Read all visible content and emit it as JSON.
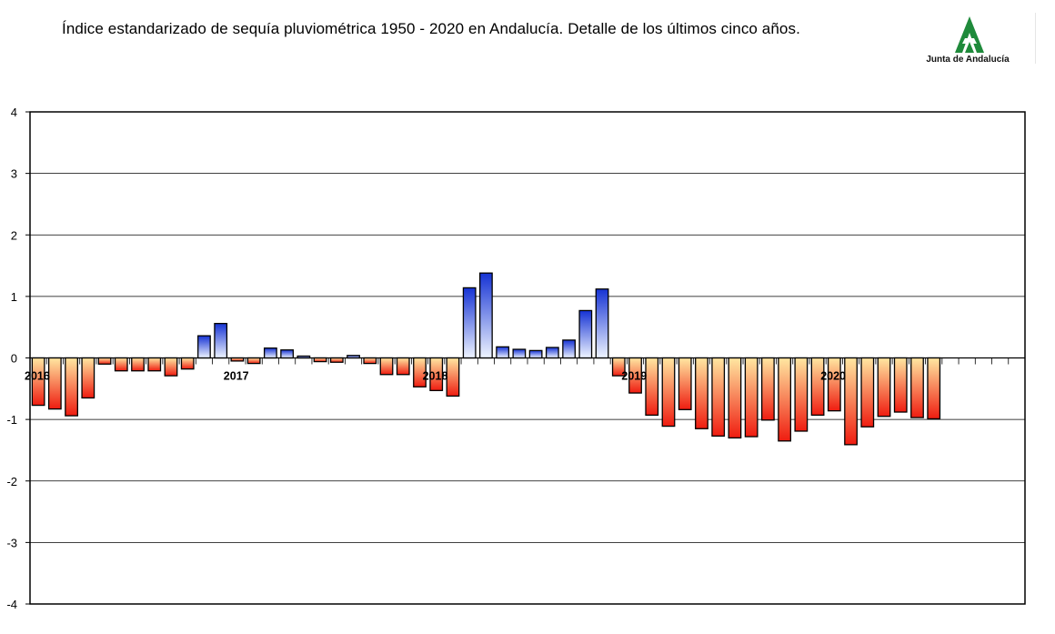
{
  "title": "Índice estandarizado de sequía pluviométrica 1950 - 2020 en Andalucía. Detalle de los últimos cinco años.",
  "logo": {
    "text": "Junta de Andalucía",
    "color": "#1f8a3b",
    "icon": "junta-andalucia-logo"
  },
  "chart_data": {
    "type": "bar",
    "ylim": [
      -4,
      4
    ],
    "yticks": [
      4,
      3,
      2,
      1,
      0,
      -1,
      -2,
      -3,
      -4
    ],
    "grid": true,
    "year_labels": [
      {
        "label": "2016",
        "index": 0
      },
      {
        "label": "2017",
        "index": 12
      },
      {
        "label": "2018",
        "index": 24
      },
      {
        "label": "2019",
        "index": 36
      },
      {
        "label": "2020",
        "index": 48
      }
    ],
    "values": [
      -0.77,
      -0.83,
      -0.94,
      -0.65,
      -0.1,
      -0.21,
      -0.21,
      -0.21,
      -0.29,
      -0.18,
      0.36,
      0.56,
      -0.05,
      -0.09,
      0.16,
      0.13,
      0.03,
      -0.06,
      -0.07,
      0.04,
      -0.09,
      -0.27,
      -0.27,
      -0.47,
      -0.53,
      -0.62,
      1.14,
      1.38,
      0.18,
      0.14,
      0.12,
      0.17,
      0.29,
      0.77,
      1.12,
      -0.29,
      -0.57,
      -0.93,
      -1.11,
      -0.84,
      -1.15,
      -1.27,
      -1.3,
      -1.28,
      -1.01,
      -1.35,
      -1.19,
      -0.93,
      -0.86,
      -1.41,
      -1.12,
      -0.95,
      -0.88,
      -0.97,
      -0.99,
      0,
      0,
      0,
      0,
      0
    ],
    "colors": {
      "positive_top": "#1633d4",
      "positive_bottom": "#eef4ff",
      "negative_top": "#ffe7a1",
      "negative_bottom": "#ef1c10"
    }
  }
}
